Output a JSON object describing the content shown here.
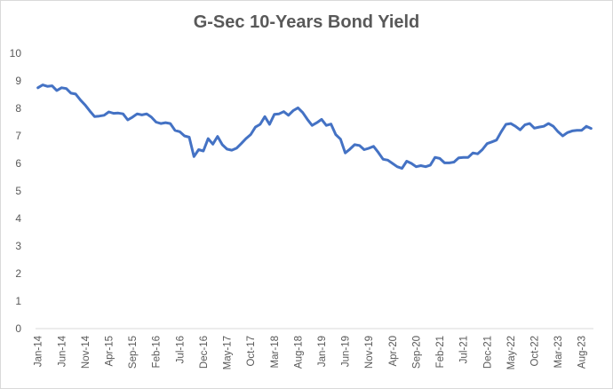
{
  "chart_data": {
    "type": "line",
    "title": "G-Sec 10-Years Bond Yield",
    "xlabel": "",
    "ylabel": "",
    "ylim": [
      0,
      10
    ],
    "y_ticks": [
      0,
      1,
      2,
      3,
      4,
      5,
      6,
      7,
      8,
      9,
      10
    ],
    "grid": false,
    "legend": "none",
    "line_color": "#4472c4",
    "x_tick_labels": [
      "Jan-14",
      "Jun-14",
      "Nov-14",
      "Apr-15",
      "Sep-15",
      "Feb-16",
      "Jul-16",
      "Dec-16",
      "May-17",
      "Oct-17",
      "Mar-18",
      "Aug-18",
      "Jan-19",
      "Jun-19",
      "Nov-19",
      "Apr-20",
      "Sep-20",
      "Feb-21",
      "Jul-21",
      "Dec-21",
      "May-22",
      "Oct-22",
      "Mar-23",
      "Aug-23"
    ],
    "series": [
      {
        "name": "G-Sec 10Y Yield",
        "start": "Jan-14",
        "frequency": "monthly",
        "values": [
          8.75,
          8.85,
          8.8,
          8.82,
          8.65,
          8.75,
          8.72,
          8.55,
          8.52,
          8.3,
          8.12,
          7.9,
          7.7,
          7.72,
          7.75,
          7.87,
          7.82,
          7.83,
          7.8,
          7.58,
          7.68,
          7.8,
          7.76,
          7.8,
          7.68,
          7.5,
          7.45,
          7.48,
          7.45,
          7.2,
          7.15,
          7.0,
          6.95,
          6.25,
          6.5,
          6.45,
          6.9,
          6.7,
          6.98,
          6.68,
          6.52,
          6.48,
          6.55,
          6.72,
          6.9,
          7.05,
          7.32,
          7.42,
          7.7,
          7.42,
          7.78,
          7.8,
          7.88,
          7.75,
          7.92,
          8.02,
          7.85,
          7.6,
          7.38,
          7.48,
          7.6,
          7.38,
          7.43,
          7.05,
          6.88,
          6.38,
          6.52,
          6.68,
          6.65,
          6.5,
          6.55,
          6.62,
          6.4,
          6.15,
          6.12,
          6.0,
          5.88,
          5.82,
          6.08,
          6.0,
          5.88,
          5.92,
          5.88,
          5.94,
          6.22,
          6.18,
          6.02,
          6.02,
          6.05,
          6.2,
          6.22,
          6.22,
          6.38,
          6.35,
          6.5,
          6.72,
          6.78,
          6.85,
          7.15,
          7.42,
          7.45,
          7.35,
          7.22,
          7.4,
          7.45,
          7.28,
          7.32,
          7.35,
          7.45,
          7.35,
          7.15,
          7.0,
          7.12,
          7.18,
          7.2,
          7.2,
          7.35,
          7.27
        ]
      }
    ]
  }
}
